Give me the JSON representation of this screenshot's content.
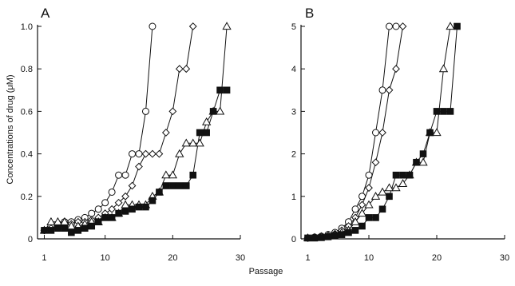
{
  "figure": {
    "ylabel": "Concentrations of drug (μM)",
    "xlabel": "Passage"
  },
  "chart_data": [
    {
      "type": "line",
      "panel_label": "A",
      "xlim": [
        0,
        30
      ],
      "ylim": [
        0,
        1.0
      ],
      "x_ticks": [
        1,
        10,
        20,
        30
      ],
      "y_ticks": [
        0,
        0.2,
        0.4,
        0.6,
        0.8,
        1.0
      ],
      "y_tick_labels": [
        "0",
        "0.2",
        "0.4",
        "0.6",
        "0.8",
        "1.0"
      ],
      "x_tick_labels": [
        "1",
        "10",
        "20",
        "30"
      ],
      "series": [
        {
          "marker": "circle",
          "x": [
            1,
            2,
            3,
            4,
            5,
            6,
            7,
            8,
            9,
            10,
            11,
            12,
            13,
            14,
            15,
            16,
            17
          ],
          "y": [
            0.04,
            0.06,
            0.07,
            0.08,
            0.08,
            0.09,
            0.1,
            0.12,
            0.14,
            0.17,
            0.22,
            0.3,
            0.3,
            0.4,
            0.4,
            0.6,
            1.0
          ]
        },
        {
          "marker": "diamond",
          "x": [
            1,
            2,
            3,
            4,
            5,
            6,
            7,
            8,
            9,
            10,
            11,
            12,
            13,
            14,
            15,
            16,
            17,
            18,
            19,
            20,
            21,
            22,
            23
          ],
          "y": [
            0.04,
            0.05,
            0.06,
            0.06,
            0.07,
            0.08,
            0.08,
            0.09,
            0.1,
            0.12,
            0.14,
            0.17,
            0.2,
            0.25,
            0.34,
            0.4,
            0.4,
            0.4,
            0.5,
            0.6,
            0.8,
            0.8,
            1.0
          ]
        },
        {
          "marker": "triangle",
          "x": [
            1,
            2,
            3,
            4,
            5,
            6,
            7,
            8,
            9,
            10,
            11,
            12,
            13,
            14,
            15,
            16,
            17,
            18,
            19,
            20,
            21,
            22,
            23,
            24,
            25,
            26,
            27,
            28
          ],
          "y": [
            0.04,
            0.08,
            0.08,
            0.08,
            0.06,
            0.06,
            0.07,
            0.08,
            0.08,
            0.1,
            0.1,
            0.12,
            0.16,
            0.16,
            0.16,
            0.16,
            0.2,
            0.22,
            0.3,
            0.3,
            0.4,
            0.45,
            0.45,
            0.45,
            0.55,
            0.6,
            0.6,
            1.0
          ]
        },
        {
          "marker": "square",
          "x": [
            1,
            2,
            3,
            4,
            5,
            6,
            7,
            8,
            9,
            10,
            11,
            12,
            13,
            14,
            15,
            16,
            17,
            18,
            19,
            20,
            21,
            22,
            23,
            24,
            25,
            26,
            27,
            28
          ],
          "y": [
            0.04,
            0.04,
            0.05,
            0.05,
            0.03,
            0.04,
            0.05,
            0.06,
            0.08,
            0.1,
            0.1,
            0.12,
            0.13,
            0.14,
            0.15,
            0.15,
            0.18,
            0.22,
            0.25,
            0.25,
            0.25,
            0.25,
            0.3,
            0.5,
            0.5,
            0.6,
            0.7,
            0.7
          ]
        }
      ]
    },
    {
      "type": "line",
      "panel_label": "B",
      "xlim": [
        0,
        30
      ],
      "ylim": [
        0,
        5
      ],
      "x_ticks": [
        1,
        10,
        20,
        30
      ],
      "y_ticks": [
        0,
        1,
        2,
        3,
        4,
        5
      ],
      "y_tick_labels": [
        "0",
        "1",
        "2",
        "3",
        "4",
        "5"
      ],
      "x_tick_labels": [
        "1",
        "10",
        "20",
        "30"
      ],
      "series": [
        {
          "marker": "circle",
          "x": [
            1,
            2,
            3,
            4,
            5,
            6,
            7,
            8,
            9,
            10,
            11,
            12,
            13,
            14
          ],
          "y": [
            0.02,
            0.04,
            0.06,
            0.1,
            0.15,
            0.25,
            0.4,
            0.7,
            1.0,
            1.5,
            2.5,
            3.5,
            5.0,
            5.0
          ]
        },
        {
          "marker": "diamond",
          "x": [
            1,
            2,
            3,
            4,
            5,
            6,
            7,
            8,
            9,
            10,
            11,
            12,
            13,
            14,
            15
          ],
          "y": [
            0.02,
            0.04,
            0.06,
            0.08,
            0.12,
            0.2,
            0.3,
            0.5,
            0.8,
            1.2,
            1.8,
            2.5,
            3.5,
            4.0,
            5.0
          ]
        },
        {
          "marker": "triangle",
          "x": [
            1,
            2,
            3,
            4,
            5,
            6,
            7,
            8,
            9,
            10,
            11,
            12,
            13,
            14,
            15,
            16,
            17,
            18,
            19,
            20,
            21,
            22
          ],
          "y": [
            0.02,
            0.03,
            0.05,
            0.08,
            0.1,
            0.15,
            0.2,
            0.4,
            0.6,
            0.8,
            1.0,
            1.1,
            1.2,
            1.2,
            1.3,
            1.5,
            1.8,
            1.8,
            2.5,
            2.5,
            4.0,
            5.0
          ]
        },
        {
          "marker": "square",
          "x": [
            1,
            2,
            3,
            4,
            5,
            6,
            7,
            8,
            9,
            10,
            11,
            12,
            13,
            14,
            15,
            16,
            17,
            18,
            19,
            20,
            21,
            22,
            23
          ],
          "y": [
            0.02,
            0.02,
            0.03,
            0.05,
            0.08,
            0.1,
            0.15,
            0.2,
            0.3,
            0.5,
            0.5,
            0.7,
            1.0,
            1.5,
            1.5,
            1.5,
            1.8,
            2.0,
            2.5,
            3.0,
            3.0,
            3.0,
            5.0
          ]
        }
      ]
    }
  ]
}
